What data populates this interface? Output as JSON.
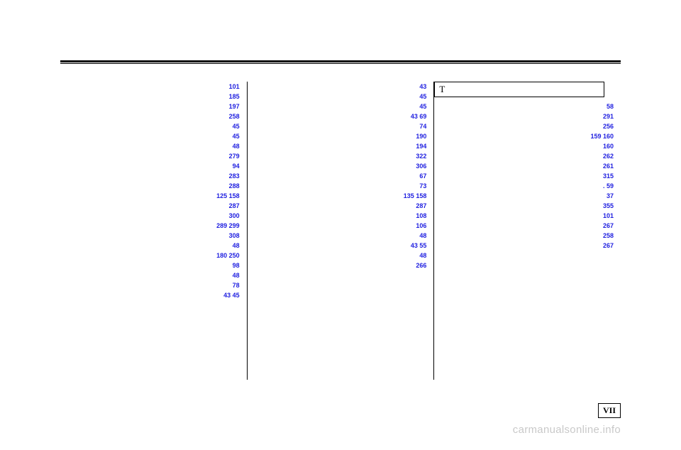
{
  "col1": [
    {
      "label": "",
      "pages": "101"
    },
    {
      "label": "",
      "pages": ""
    },
    {
      "label": "",
      "pages": "185"
    },
    {
      "label": "",
      "pages": "197"
    },
    {
      "label": "",
      "pages": "258"
    },
    {
      "label": "",
      "pages": "45"
    },
    {
      "label": "",
      "pages": "45"
    },
    {
      "label": "",
      "pages": ""
    },
    {
      "label": "",
      "pages": "48"
    },
    {
      "label": "",
      "pages": ""
    },
    {
      "label": "",
      "pages": "279"
    },
    {
      "label": "",
      "pages": "94"
    },
    {
      "label": "",
      "pages": "283"
    },
    {
      "label": "",
      "pages": "288"
    },
    {
      "label": "",
      "pages": "125  158"
    },
    {
      "label": "",
      "pages": ""
    },
    {
      "label": "",
      "pages": "287"
    },
    {
      "label": "",
      "pages": "300"
    },
    {
      "label": "",
      "pages": "289  299"
    },
    {
      "label": "",
      "pages": "308"
    },
    {
      "label": "",
      "pages": "48"
    },
    {
      "label": "",
      "pages": "180  250"
    },
    {
      "label": "",
      "pages": "98"
    },
    {
      "label": "",
      "pages": "48"
    },
    {
      "label": "",
      "pages": "78"
    },
    {
      "label": "",
      "pages": "43   45"
    }
  ],
  "col2": [
    {
      "label": "",
      "pages": ""
    },
    {
      "label": "",
      "pages": "43"
    },
    {
      "label": "",
      "pages": "45"
    },
    {
      "label": "",
      "pages": "45"
    },
    {
      "label": "",
      "pages": "43   69"
    },
    {
      "label": "",
      "pages": "74"
    },
    {
      "label": "",
      "pages": "190"
    },
    {
      "label": "",
      "pages": ""
    },
    {
      "label": "",
      "pages": "194"
    },
    {
      "label": "",
      "pages": "322"
    },
    {
      "label": "",
      "pages": "306"
    },
    {
      "label": "",
      "pages": ""
    },
    {
      "label": "",
      "pages": "67"
    },
    {
      "label": "",
      "pages": "73"
    },
    {
      "label": "",
      "pages": "135  158"
    },
    {
      "label": "",
      "pages": "287"
    },
    {
      "label": "",
      "pages": "108"
    },
    {
      "label": "",
      "pages": "106"
    },
    {
      "label": "",
      "pages": ""
    },
    {
      "label": "",
      "pages": "48"
    },
    {
      "label": "",
      "pages": "43   55"
    },
    {
      "label": "",
      "pages": "48"
    },
    {
      "label": "",
      "pages": "266"
    }
  ],
  "section_letter": "T",
  "col3": [
    {
      "label": "",
      "pages": ""
    },
    {
      "label": "",
      "pages": "58"
    },
    {
      "label": "",
      "pages": "291"
    },
    {
      "label": "",
      "pages": "256"
    },
    {
      "label": "",
      "pages": "159  160"
    },
    {
      "label": "",
      "pages": ""
    },
    {
      "label": "",
      "pages": "160"
    },
    {
      "label": "",
      "pages": "262"
    },
    {
      "label": "",
      "pages": "261"
    },
    {
      "label": "",
      "pages": ""
    },
    {
      "label": "",
      "pages": "315"
    },
    {
      "label": "",
      "pages": ". 59"
    },
    {
      "label": "",
      "pages": "37"
    },
    {
      "label": "",
      "pages": "355"
    },
    {
      "label": "",
      "pages": "101"
    },
    {
      "label": "",
      "pages": "267"
    },
    {
      "label": "",
      "pages": "258"
    },
    {
      "label": "",
      "pages": "267"
    }
  ],
  "vii_label": "VII",
  "watermark": "carmanualsonline.info"
}
